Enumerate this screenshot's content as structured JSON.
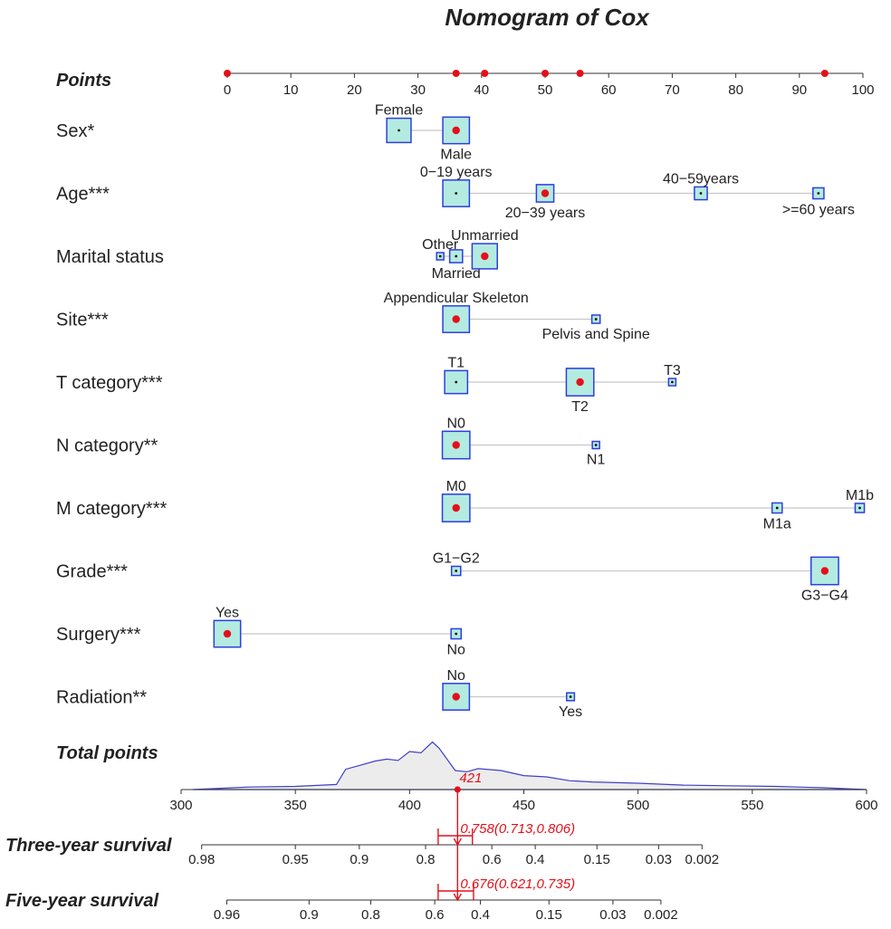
{
  "chart_data": {
    "type": "nomogram",
    "title": "Nomogram of Cox",
    "points_axis": {
      "label": "Points",
      "range": [
        0,
        100
      ],
      "ticks": [
        0,
        10,
        20,
        30,
        40,
        50,
        60,
        70,
        80,
        90,
        100
      ],
      "ticklabels": [
        "0",
        "10",
        "20",
        "30",
        "40",
        "50",
        "60",
        "70",
        "80",
        "90",
        "100"
      ],
      "highlighted_points": [
        0,
        36,
        40.5,
        50,
        55.5,
        94
      ]
    },
    "variables": [
      {
        "label": "Sex*",
        "levels": [
          {
            "name": "Female",
            "points": 27,
            "size": 0.53,
            "selected": false,
            "label_pos": "above"
          },
          {
            "name": "Male",
            "points": 36,
            "size": 0.58,
            "selected": true,
            "label_pos": "below"
          }
        ]
      },
      {
        "label": "Age***",
        "levels": [
          {
            "name": "0−19 years",
            "points": 36,
            "size": 0.58,
            "selected": false,
            "label_pos": "above"
          },
          {
            "name": "20−39 years",
            "points": 50,
            "size": 0.38,
            "selected": true,
            "label_pos": "below"
          },
          {
            "name": "40−59years",
            "points": 74.5,
            "size": 0.28,
            "selected": false,
            "label_pos": "above"
          },
          {
            "name": ">=60 years",
            "points": 93,
            "size": 0.24,
            "selected": false,
            "label_pos": "below"
          }
        ]
      },
      {
        "label": "Marital status",
        "levels": [
          {
            "name": "Other",
            "points": 33.5,
            "size": 0.14,
            "selected": false,
            "label_pos": "above"
          },
          {
            "name": "Married",
            "points": 36,
            "size": 0.28,
            "selected": false,
            "label_pos": "below"
          },
          {
            "name": "Unmarried",
            "points": 40.5,
            "size": 0.55,
            "selected": true,
            "label_pos": "above"
          }
        ]
      },
      {
        "label": "Site***",
        "levels": [
          {
            "name": "Appendicular Skeleton",
            "points": 36,
            "size": 0.58,
            "selected": true,
            "label_pos": "above"
          },
          {
            "name": "Pelvis and Spine",
            "points": 58,
            "size": 0.18,
            "selected": false,
            "label_pos": "below"
          }
        ]
      },
      {
        "label": "T category***",
        "levels": [
          {
            "name": "T1",
            "points": 36,
            "size": 0.5,
            "selected": false,
            "label_pos": "above"
          },
          {
            "name": "T2",
            "points": 55.5,
            "size": 0.6,
            "selected": true,
            "label_pos": "below"
          },
          {
            "name": "T3",
            "points": 70,
            "size": 0.14,
            "selected": false,
            "label_pos": "above"
          }
        ]
      },
      {
        "label": "N category**",
        "levels": [
          {
            "name": "N0",
            "points": 36,
            "size": 0.6,
            "selected": true,
            "label_pos": "above"
          },
          {
            "name": "N1",
            "points": 58,
            "size": 0.08,
            "selected": false,
            "label_pos": "below"
          }
        ]
      },
      {
        "label": "M category***",
        "levels": [
          {
            "name": "M0",
            "points": 36,
            "size": 0.6,
            "selected": true,
            "label_pos": "above"
          },
          {
            "name": "M1a",
            "points": 86.5,
            "size": 0.22,
            "selected": false,
            "label_pos": "below"
          },
          {
            "name": "M1b",
            "points": 99.5,
            "size": 0.2,
            "selected": false,
            "label_pos": "above"
          }
        ]
      },
      {
        "label": "Grade***",
        "levels": [
          {
            "name": "G1−G2",
            "points": 36,
            "size": 0.2,
            "selected": false,
            "label_pos": "above"
          },
          {
            "name": "G3−G4",
            "points": 94,
            "size": 0.6,
            "selected": true,
            "label_pos": "below"
          }
        ]
      },
      {
        "label": "Surgery***",
        "levels": [
          {
            "name": "Yes",
            "points": 0,
            "size": 0.58,
            "selected": true,
            "label_pos": "above"
          },
          {
            "name": "No",
            "points": 36,
            "size": 0.22,
            "selected": false,
            "label_pos": "below"
          }
        ]
      },
      {
        "label": "Radiation**",
        "levels": [
          {
            "name": "No",
            "points": 36,
            "size": 0.58,
            "selected": true,
            "label_pos": "above"
          },
          {
            "name": "Yes",
            "points": 54,
            "size": 0.17,
            "selected": false,
            "label_pos": "below"
          }
        ]
      }
    ],
    "total_points": {
      "label": "Total points",
      "range": [
        300,
        600
      ],
      "ticks": [
        300,
        350,
        400,
        450,
        500,
        550,
        600
      ],
      "ticklabels": [
        "300",
        "350",
        "400",
        "450",
        "500",
        "550",
        "600"
      ],
      "marker_value": 421,
      "marker_label": "421",
      "density": [
        [
          305,
          0.0
        ],
        [
          330,
          0.04
        ],
        [
          350,
          0.05
        ],
        [
          368,
          0.08
        ],
        [
          372,
          0.32
        ],
        [
          378,
          0.38
        ],
        [
          385,
          0.45
        ],
        [
          390,
          0.48
        ],
        [
          395,
          0.46
        ],
        [
          400,
          0.6
        ],
        [
          405,
          0.58
        ],
        [
          410,
          0.75
        ],
        [
          413,
          0.65
        ],
        [
          417,
          0.45
        ],
        [
          420,
          0.3
        ],
        [
          425,
          0.28
        ],
        [
          430,
          0.33
        ],
        [
          440,
          0.3
        ],
        [
          450,
          0.22
        ],
        [
          460,
          0.2
        ],
        [
          470,
          0.14
        ],
        [
          480,
          0.12
        ],
        [
          500,
          0.1
        ],
        [
          520,
          0.07
        ],
        [
          540,
          0.06
        ],
        [
          560,
          0.05
        ],
        [
          580,
          0.03
        ],
        [
          600,
          0.0
        ]
      ]
    },
    "survival_axes": [
      {
        "label": "Three-year survival",
        "ticks": [
          {
            "label": "0.98",
            "x": 0.98,
            "total": 309
          },
          {
            "label": "0.95",
            "x": 0.95,
            "total": 350
          },
          {
            "label": "0.9",
            "x": 0.9,
            "total": 378
          },
          {
            "label": "0.8",
            "x": 0.8,
            "total": 407
          },
          {
            "label": "0.6",
            "x": 0.6,
            "total": 436
          },
          {
            "label": "0.4",
            "x": 0.4,
            "total": 455
          },
          {
            "label": "0.15",
            "x": 0.15,
            "total": 482
          },
          {
            "label": "0.03",
            "x": 0.03,
            "total": 509
          },
          {
            "label": "0.002",
            "x": 0.002,
            "total": 528
          }
        ],
        "estimate": 0.758,
        "ci_low": 0.713,
        "ci_high": 0.806,
        "estimate_total": 421,
        "ci_low_total": 427.5,
        "ci_high_total": 412.5,
        "annotation": "0.758(0.713,0.806)"
      },
      {
        "label": "Five-year survival",
        "ticks": [
          {
            "label": "0.96",
            "x": 0.96,
            "total": 320
          },
          {
            "label": "0.9",
            "x": 0.9,
            "total": 356
          },
          {
            "label": "0.8",
            "x": 0.8,
            "total": 383
          },
          {
            "label": "0.6",
            "x": 0.6,
            "total": 411
          },
          {
            "label": "0.4",
            "x": 0.4,
            "total": 431
          },
          {
            "label": "0.15",
            "x": 0.15,
            "total": 461
          },
          {
            "label": "0.03",
            "x": 0.03,
            "total": 489
          },
          {
            "label": "0.002",
            "x": 0.002,
            "total": 510
          }
        ],
        "estimate": 0.676,
        "ci_low": 0.621,
        "ci_high": 0.735,
        "estimate_total": 421,
        "ci_low_total": 428,
        "ci_high_total": 412.5,
        "annotation": "0.676(0.621,0.735)"
      }
    ]
  },
  "colors": {
    "box_fill": "#b4ebe0",
    "box_stroke": "#2c3ee0",
    "highlight": "#e3101a",
    "density_line": "#4040c8",
    "density_fill": "#ececec"
  }
}
